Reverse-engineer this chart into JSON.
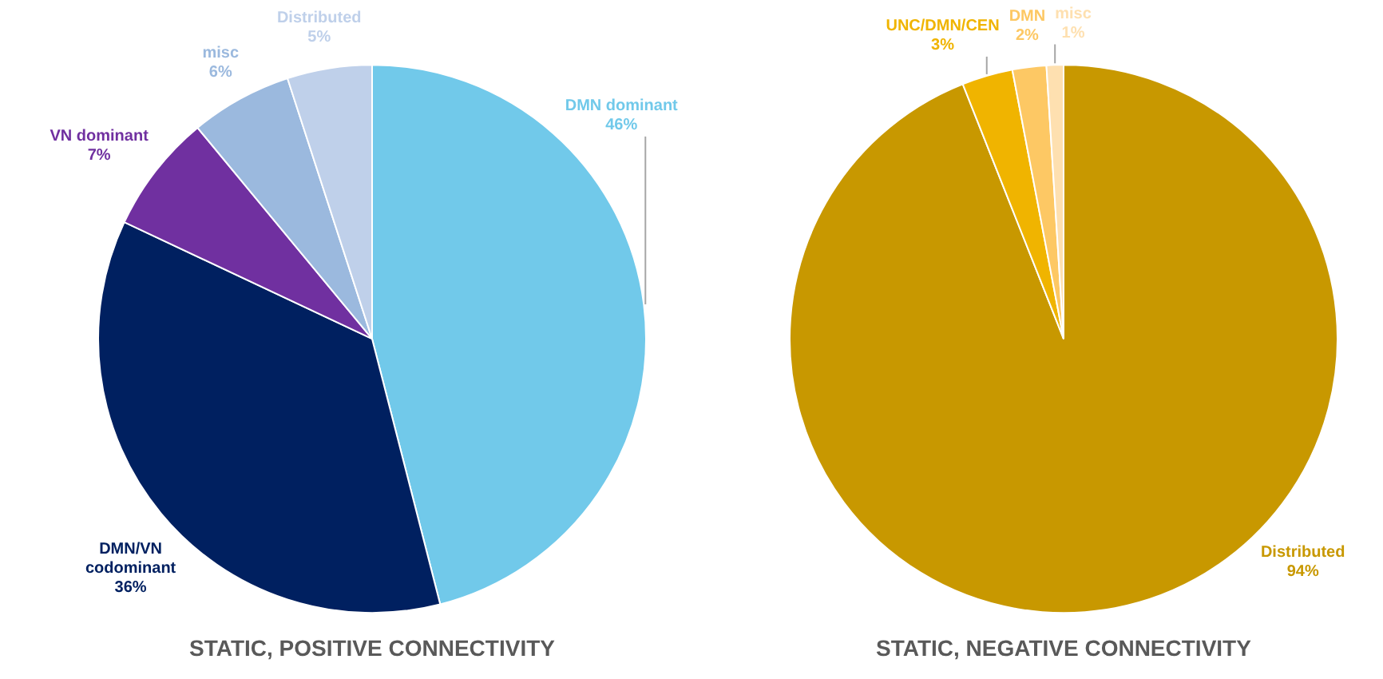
{
  "chart_data": [
    {
      "type": "pie",
      "title": "STATIC, POSITIVE CONNECTIVITY",
      "categories": [
        "DMN dominant",
        "DMN/VN codominant",
        "VN dominant",
        "misc",
        "Distributed"
      ],
      "values": [
        46,
        36,
        7,
        6,
        5
      ],
      "value_labels": [
        "46%",
        "36%",
        "7%",
        "6%",
        "5%"
      ],
      "colors": [
        "#71c9ea",
        "#002060",
        "#7030a0",
        "#9bb9de",
        "#bfd0ea"
      ]
    },
    {
      "type": "pie",
      "title": "STATIC, NEGATIVE CONNECTIVITY",
      "categories": [
        "Distributed",
        "UNC/DMN/CEN",
        "DMN",
        "misc"
      ],
      "values": [
        94,
        3,
        2,
        1
      ],
      "value_labels": [
        "94%",
        "3%",
        "2%",
        "1%"
      ],
      "colors": [
        "#c89800",
        "#f0b400",
        "#fdc864",
        "#fee0b0"
      ]
    }
  ]
}
